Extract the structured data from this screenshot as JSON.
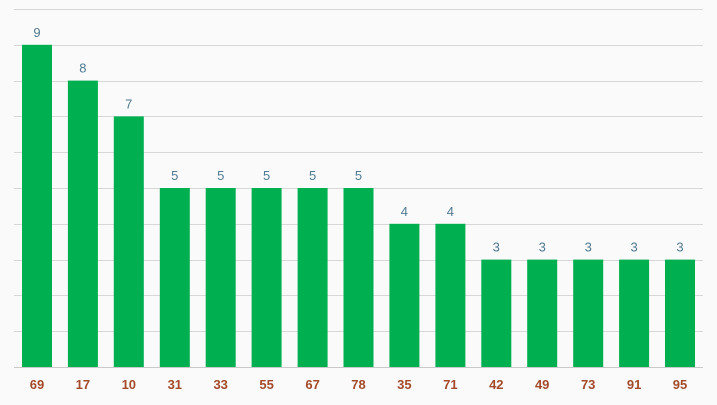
{
  "chart_data": {
    "type": "bar",
    "categories": [
      "69",
      "17",
      "10",
      "31",
      "33",
      "55",
      "67",
      "78",
      "35",
      "71",
      "42",
      "49",
      "73",
      "91",
      "95"
    ],
    "values": [
      9,
      8,
      7,
      5,
      5,
      5,
      5,
      5,
      4,
      4,
      3,
      3,
      3,
      3,
      3
    ],
    "title": "",
    "xlabel": "",
    "ylabel": "",
    "ylim": [
      0,
      10
    ],
    "grid": true,
    "legend": "none",
    "colors": {
      "bar": "#00b050",
      "value_label": "#4f7a92",
      "category_label": "#a34a2a",
      "grid": "#d7d7d7",
      "background": "#fafafa"
    }
  }
}
